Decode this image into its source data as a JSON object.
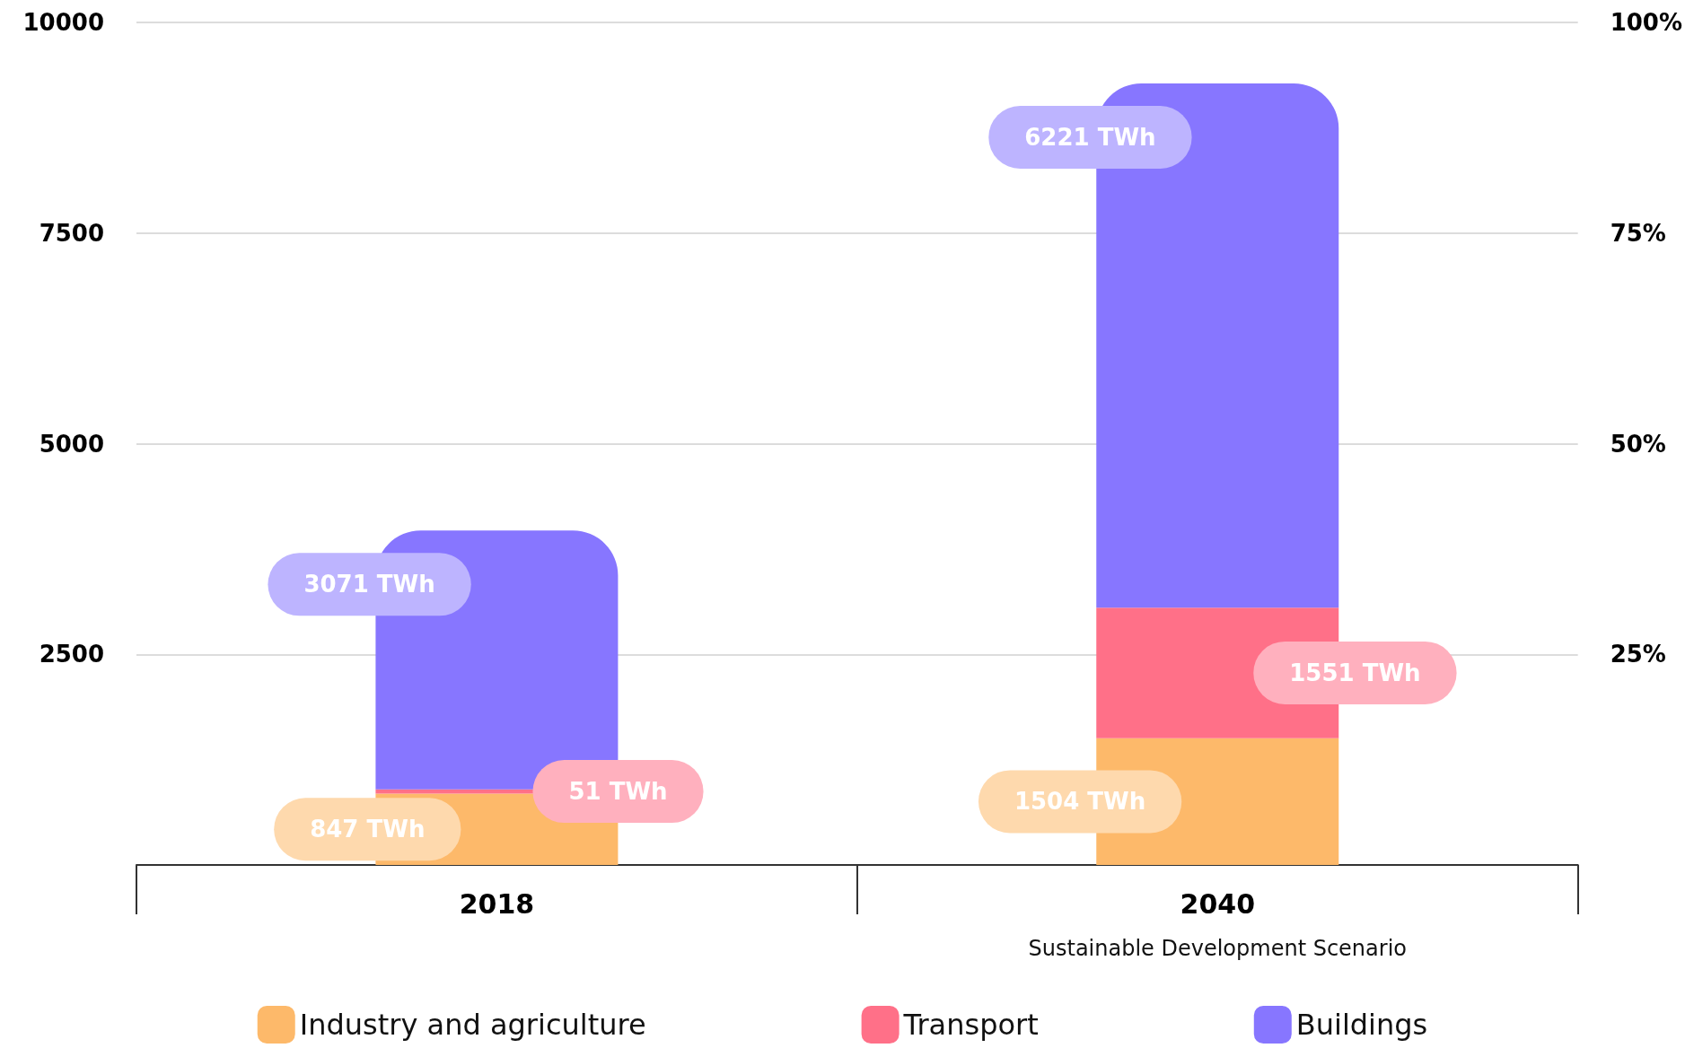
{
  "chart_data": {
    "type": "bar",
    "stacked": true,
    "categories": [
      "2018",
      "2040"
    ],
    "series": [
      {
        "name": "Industry and agriculture",
        "color": "#fdb96a",
        "values": [
          847,
          1504
        ],
        "value_labels": [
          "847 TWh",
          "1504 TWh"
        ]
      },
      {
        "name": "Transport",
        "color": "#ff7088",
        "values": [
          51,
          1551
        ],
        "value_labels": [
          "51 TWh",
          "1551 TWh"
        ]
      },
      {
        "name": "Buildings",
        "color": "#8776ff",
        "values": [
          3071,
          6221
        ],
        "value_labels": [
          "3071 TWh",
          "6221 TWh"
        ]
      }
    ],
    "ylim": [
      0,
      10000
    ],
    "yticks": [
      2500,
      5000,
      7500,
      10000
    ],
    "y2lim": [
      0,
      100
    ],
    "y2ticks": [
      {
        "value": 25,
        "label": "25%"
      },
      {
        "value": 50,
        "label": "50%"
      },
      {
        "value": 75,
        "label": "75%"
      },
      {
        "value": 100,
        "label": "100%"
      }
    ],
    "annotations": [
      "Sustainable Development Scenario"
    ],
    "grid": "y",
    "legend": "bottom"
  }
}
